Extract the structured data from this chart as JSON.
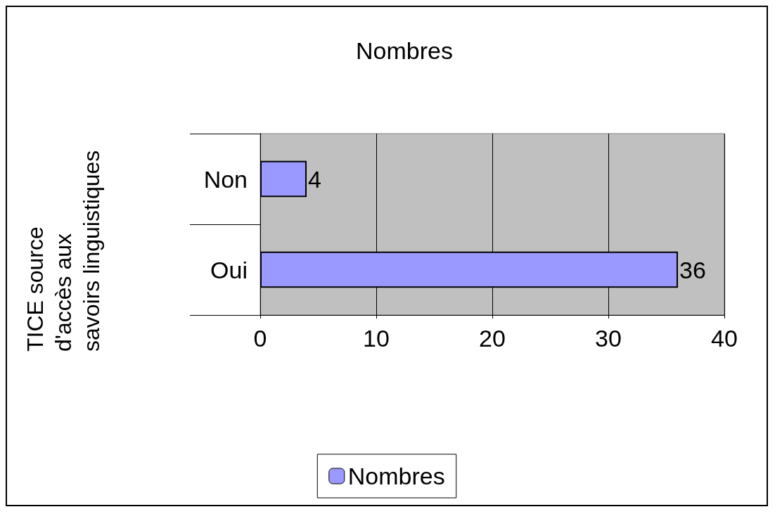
{
  "chart_data": {
    "type": "bar",
    "orientation": "horizontal",
    "title": "Nombres",
    "ylabel": "TICE source d'accès aux savoirs linguistiques",
    "categories": [
      "Non",
      "Oui"
    ],
    "series": [
      {
        "name": "Nombres",
        "color": "#9999ff",
        "values": [
          4,
          36
        ]
      }
    ],
    "xlim": [
      0,
      40
    ],
    "xticks": [
      0,
      10,
      20,
      30,
      40
    ],
    "grid": "x",
    "legend": "bottom",
    "data_labels": true
  }
}
